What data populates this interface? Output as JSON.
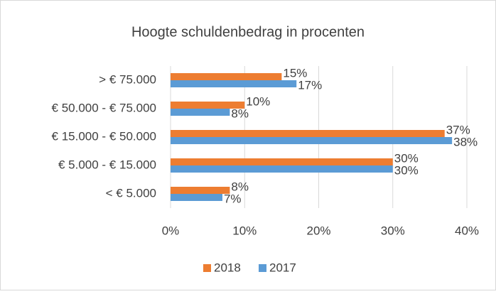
{
  "chart_data": {
    "type": "bar",
    "orientation": "horizontal",
    "title": "Hoogte schuldenbedrag in procenten",
    "categories": [
      "> € 75.000",
      "€ 50.000 - € 75.000",
      "€ 15.000 - € 50.000",
      "€ 5.000 - € 15.000",
      "< € 5.000"
    ],
    "series": [
      {
        "name": "2018",
        "color": "#ed7d31",
        "values": [
          15,
          10,
          37,
          30,
          8
        ],
        "value_labels": [
          "15%",
          "10%",
          "37%",
          "30%",
          "8%"
        ]
      },
      {
        "name": "2017",
        "color": "#5b9bd5",
        "values": [
          17,
          8,
          38,
          30,
          7
        ],
        "value_labels": [
          "17%",
          "8%",
          "38%",
          "30%",
          "7%"
        ]
      }
    ],
    "xlim": [
      0,
      40
    ],
    "xticks": [
      {
        "value": 0,
        "label": "0%"
      },
      {
        "value": 10,
        "label": "10%"
      },
      {
        "value": 20,
        "label": "20%"
      },
      {
        "value": 30,
        "label": "30%"
      },
      {
        "value": 40,
        "label": "40%"
      }
    ],
    "grid": true,
    "legend": "bottom"
  }
}
